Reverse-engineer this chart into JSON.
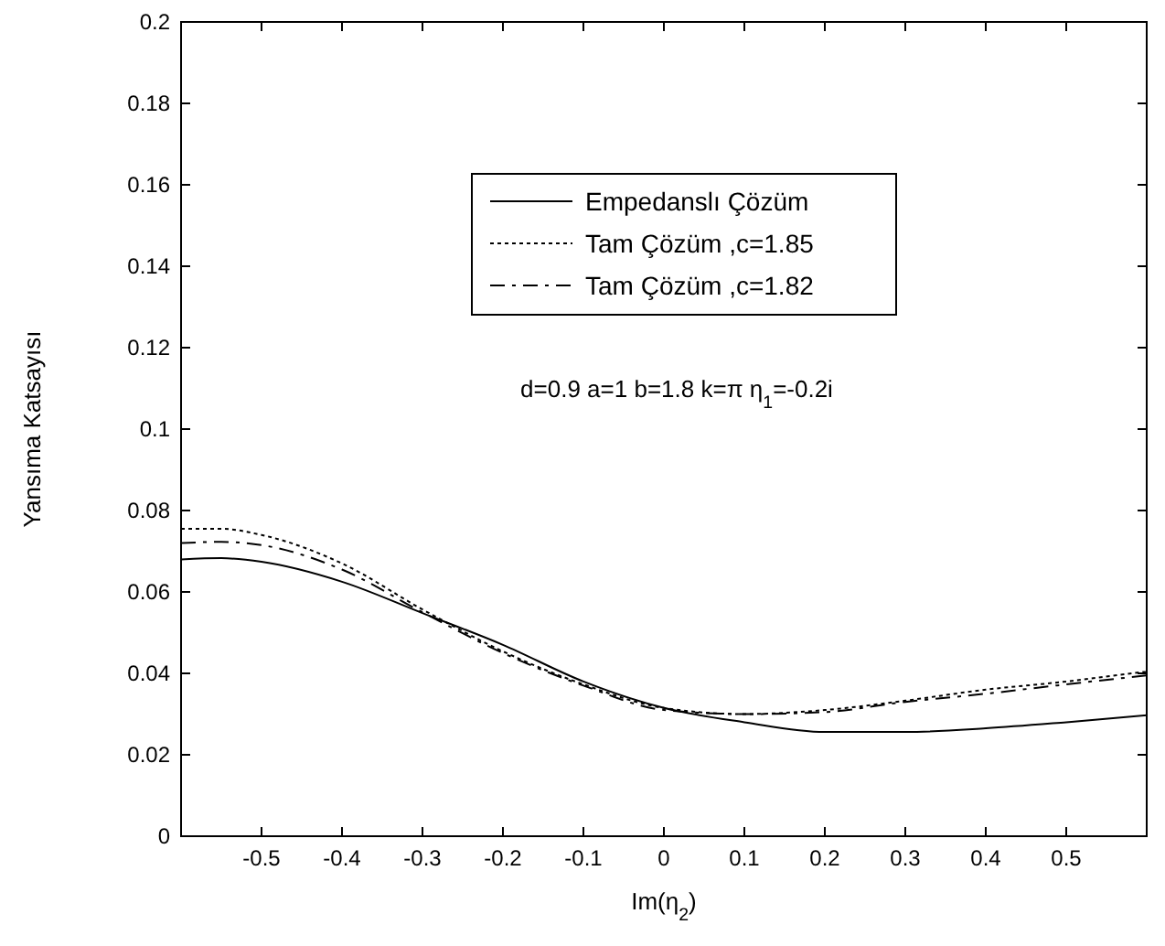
{
  "chart_data": {
    "type": "line",
    "xlabel": "Im(η$_{2}$)",
    "ylabel": "Yansıma Katsayısı",
    "x": [
      -0.6,
      -0.55,
      -0.5,
      -0.4,
      -0.3,
      -0.2,
      -0.1,
      0,
      0.1,
      0.2,
      0.3,
      0.4,
      0.5,
      0.6
    ],
    "xlim": [
      -0.6,
      0.6
    ],
    "xticks": [
      -0.5,
      -0.4,
      -0.3,
      -0.2,
      -0.1,
      0,
      0.1,
      0.2,
      0.3,
      0.4,
      0.5
    ],
    "ylim": [
      0,
      0.2
    ],
    "yticks": [
      0,
      0.02,
      0.04,
      0.06,
      0.08,
      0.1,
      0.12,
      0.14,
      0.16,
      0.18,
      0.2
    ],
    "series": [
      {
        "name": "Empedanslı Çözüm",
        "color": "#000000",
        "line_style": "solid",
        "values": [
          0.068,
          0.0683,
          0.0674,
          0.0625,
          0.0548,
          0.047,
          0.038,
          0.0315,
          0.028,
          0.0256,
          0.0256,
          0.0265,
          0.028,
          0.0297
        ]
      },
      {
        "name": "Tam Çözüm ,c=1.85",
        "color": "#000000",
        "line_style": "dotted",
        "values": [
          0.0755,
          0.0755,
          0.074,
          0.067,
          0.0557,
          0.0454,
          0.0373,
          0.0315,
          0.03,
          0.031,
          0.0333,
          0.036,
          0.038,
          0.0405
        ]
      },
      {
        "name": "Tam Çözüm ,c=1.82",
        "color": "#000000",
        "line_style": "dashed",
        "values": [
          0.072,
          0.0723,
          0.0715,
          0.0655,
          0.055,
          0.045,
          0.037,
          0.031,
          0.03,
          0.0305,
          0.033,
          0.035,
          0.0373,
          0.0395
        ]
      }
    ],
    "annotations": [
      "d=0.9 a=1 b=1.8 k=π η$_{1}$=-0.2i"
    ],
    "legend": "top",
    "grid": false,
    "marker": "none"
  }
}
